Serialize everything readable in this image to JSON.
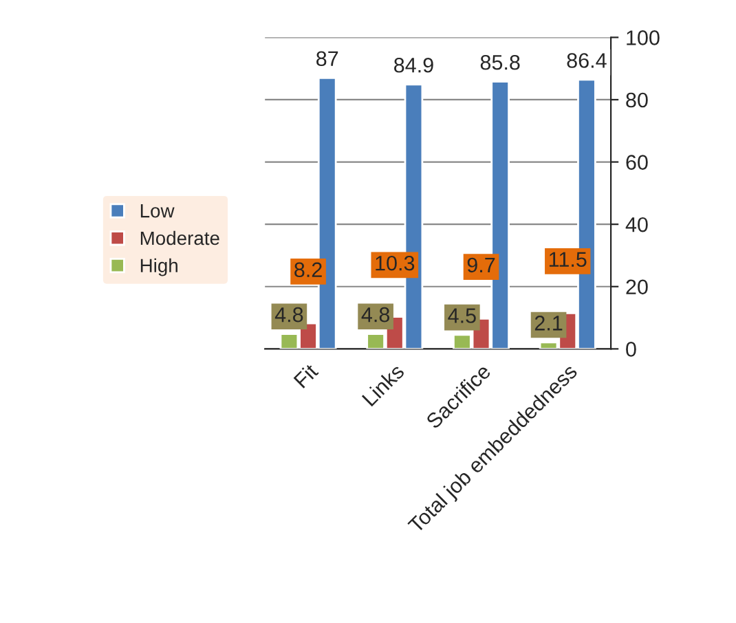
{
  "chart_data": {
    "type": "bar",
    "categories": [
      "Fit",
      "Links",
      "Sacrifice",
      "Total job embeddedness"
    ],
    "series": [
      {
        "name": "Low",
        "color": "#4a7ebb",
        "values": [
          87,
          84.9,
          85.8,
          86.4
        ]
      },
      {
        "name": "Moderate",
        "color": "#be4b48",
        "values": [
          8.2,
          10.3,
          9.7,
          11.5
        ]
      },
      {
        "name": "High",
        "color": "#98b954",
        "values": [
          4.8,
          4.8,
          4.5,
          2.1
        ]
      }
    ],
    "ylim": [
      0,
      100
    ],
    "yticks": [
      0,
      20,
      40,
      60,
      80,
      100
    ],
    "grid": "y",
    "legend": "left",
    "data_labels": true
  }
}
